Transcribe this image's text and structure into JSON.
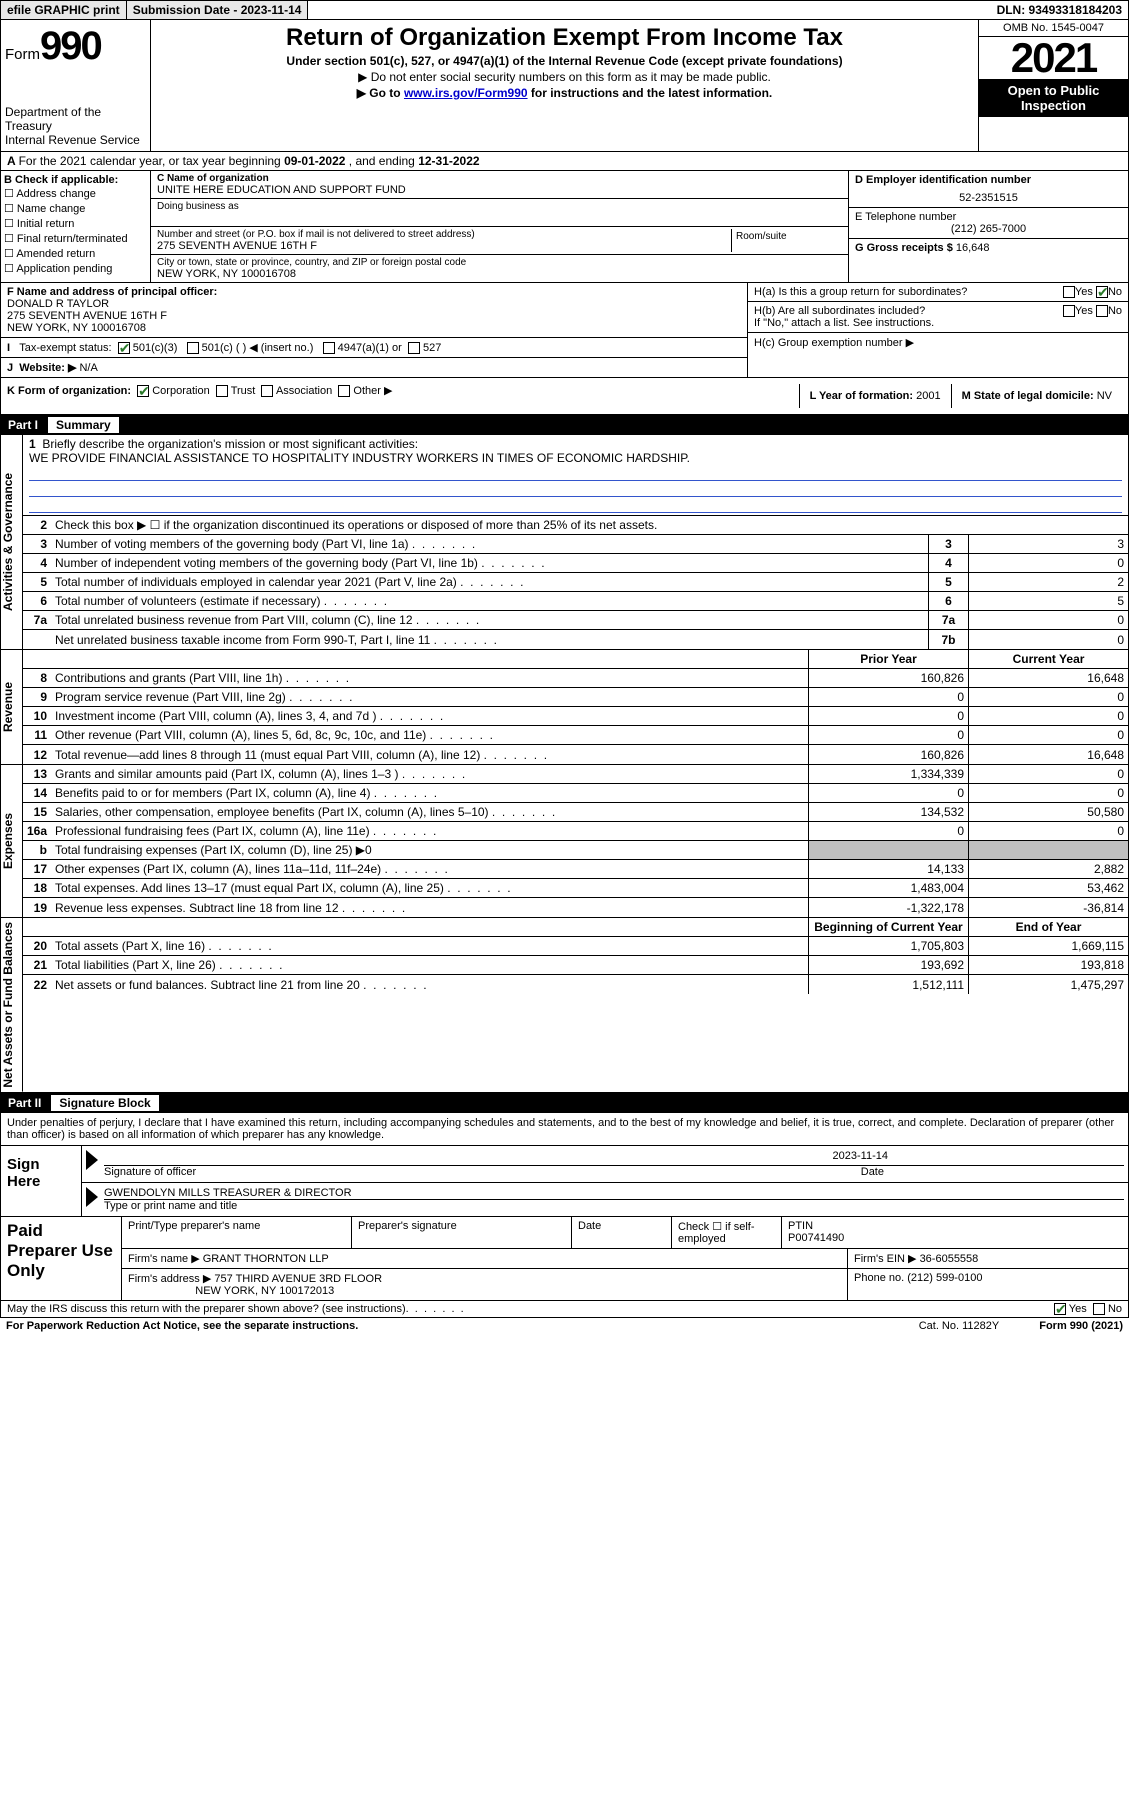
{
  "topbar": {
    "efile": "efile GRAPHIC print",
    "submission_label": "Submission Date - 2023-11-14",
    "dln": "DLN: 93493318184203"
  },
  "header": {
    "form_word": "Form",
    "form_num": "990",
    "dept": "Department of the Treasury",
    "irs": "Internal Revenue Service",
    "title": "Return of Organization Exempt From Income Tax",
    "sub": "Under section 501(c), 527, or 4947(a)(1) of the Internal Revenue Code (except private foundations)",
    "note1": "▶ Do not enter social security numbers on this form as it may be made public.",
    "note2_pre": "▶ Go to ",
    "note2_link": "www.irs.gov/Form990",
    "note2_post": " for instructions and the latest information.",
    "omb": "OMB No. 1545-0047",
    "year": "2021",
    "open": "Open to Public Inspection"
  },
  "A": {
    "text_pre": "For the 2021 calendar year, or tax year beginning ",
    "begin": "09-01-2022",
    "mid": " , and ending ",
    "end": "12-31-2022"
  },
  "B": {
    "label": "B Check if applicable:",
    "opts": [
      "Address change",
      "Name change",
      "Initial return",
      "Final return/terminated",
      "Amended return",
      "Application pending"
    ]
  },
  "C": {
    "name_lbl": "C Name of organization",
    "name": "UNITE HERE EDUCATION AND SUPPORT FUND",
    "dba_lbl": "Doing business as",
    "addr_lbl": "Number and street (or P.O. box if mail is not delivered to street address)",
    "room_lbl": "Room/suite",
    "addr": "275 SEVENTH AVENUE 16TH F",
    "city_lbl": "City or town, state or province, country, and ZIP or foreign postal code",
    "city": "NEW YORK, NY  100016708"
  },
  "D": {
    "lbl": "D Employer identification number",
    "val": "52-2351515"
  },
  "E": {
    "lbl": "E Telephone number",
    "val": "(212) 265-7000"
  },
  "G": {
    "lbl": "G Gross receipts $",
    "val": "16,648"
  },
  "F": {
    "lbl": "F Name and address of principal officer:",
    "name": "DONALD R TAYLOR",
    "addr1": "275 SEVENTH AVENUE 16TH F",
    "addr2": "NEW YORK, NY  100016708"
  },
  "I": {
    "lbl": "Tax-exempt status:",
    "c3": "501(c)(3)",
    "c": "501(c) (    ) ◀ (insert no.)",
    "a": "4947(a)(1) or",
    "s": "527"
  },
  "J": {
    "lbl": "Website: ▶",
    "val": "N/A"
  },
  "H": {
    "a": "H(a)  Is this a group return for subordinates?",
    "b": "H(b)  Are all subordinates included?",
    "bnote": "If \"No,\" attach a list. See instructions.",
    "c": "H(c)  Group exemption number ▶",
    "yes": "Yes",
    "no": "No"
  },
  "K": {
    "lbl": "K Form of organization:",
    "corp": "Corporation",
    "trust": "Trust",
    "assoc": "Association",
    "other": "Other ▶"
  },
  "L": {
    "lbl": "L Year of formation:",
    "val": "2001"
  },
  "M": {
    "lbl": "M State of legal domicile:",
    "val": "NV"
  },
  "part1": {
    "pn": "Part I",
    "pt": "Summary"
  },
  "mission": {
    "num": "1",
    "lbl": "Briefly describe the organization's mission or most significant activities:",
    "text": "WE PROVIDE FINANCIAL ASSISTANCE TO HOSPITALITY INDUSTRY WORKERS IN TIMES OF ECONOMIC HARDSHIP."
  },
  "line2": "Check this box ▶ ☐  if the organization discontinued its operations or disposed of more than 25% of its net assets.",
  "gov": [
    {
      "n": "3",
      "t": "Number of voting members of the governing body (Part VI, line 1a)",
      "b": "3",
      "v": "3"
    },
    {
      "n": "4",
      "t": "Number of independent voting members of the governing body (Part VI, line 1b)",
      "b": "4",
      "v": "0"
    },
    {
      "n": "5",
      "t": "Total number of individuals employed in calendar year 2021 (Part V, line 2a)",
      "b": "5",
      "v": "2"
    },
    {
      "n": "6",
      "t": "Total number of volunteers (estimate if necessary)",
      "b": "6",
      "v": "5"
    },
    {
      "n": "7a",
      "t": "Total unrelated business revenue from Part VIII, column (C), line 12",
      "b": "7a",
      "v": "0"
    },
    {
      "n": "",
      "t": "Net unrelated business taxable income from Form 990-T, Part I, line 11",
      "b": "7b",
      "v": "0"
    }
  ],
  "revhdr": {
    "prior": "Prior Year",
    "curr": "Current Year"
  },
  "rev": [
    {
      "n": "8",
      "t": "Contributions and grants (Part VIII, line 1h)",
      "p": "160,826",
      "c": "16,648"
    },
    {
      "n": "9",
      "t": "Program service revenue (Part VIII, line 2g)",
      "p": "0",
      "c": "0"
    },
    {
      "n": "10",
      "t": "Investment income (Part VIII, column (A), lines 3, 4, and 7d )",
      "p": "0",
      "c": "0"
    },
    {
      "n": "11",
      "t": "Other revenue (Part VIII, column (A), lines 5, 6d, 8c, 9c, 10c, and 11e)",
      "p": "0",
      "c": "0"
    },
    {
      "n": "12",
      "t": "Total revenue—add lines 8 through 11 (must equal Part VIII, column (A), line 12)",
      "p": "160,826",
      "c": "16,648"
    }
  ],
  "exp": [
    {
      "n": "13",
      "t": "Grants and similar amounts paid (Part IX, column (A), lines 1–3 )",
      "p": "1,334,339",
      "c": "0"
    },
    {
      "n": "14",
      "t": "Benefits paid to or for members (Part IX, column (A), line 4)",
      "p": "0",
      "c": "0"
    },
    {
      "n": "15",
      "t": "Salaries, other compensation, employee benefits (Part IX, column (A), lines 5–10)",
      "p": "134,532",
      "c": "50,580"
    },
    {
      "n": "16a",
      "t": "Professional fundraising fees (Part IX, column (A), line 11e)",
      "p": "0",
      "c": "0"
    },
    {
      "n": "b",
      "t": "Total fundraising expenses (Part IX, column (D), line 25) ▶0",
      "p": "",
      "c": "",
      "grey": true
    },
    {
      "n": "17",
      "t": "Other expenses (Part IX, column (A), lines 11a–11d, 11f–24e)",
      "p": "14,133",
      "c": "2,882"
    },
    {
      "n": "18",
      "t": "Total expenses. Add lines 13–17 (must equal Part IX, column (A), line 25)",
      "p": "1,483,004",
      "c": "53,462"
    },
    {
      "n": "19",
      "t": "Revenue less expenses. Subtract line 18 from line 12",
      "p": "-1,322,178",
      "c": "-36,814"
    }
  ],
  "nethdr": {
    "prior": "Beginning of Current Year",
    "curr": "End of Year"
  },
  "net": [
    {
      "n": "20",
      "t": "Total assets (Part X, line 16)",
      "p": "1,705,803",
      "c": "1,669,115"
    },
    {
      "n": "21",
      "t": "Total liabilities (Part X, line 26)",
      "p": "193,692",
      "c": "193,818"
    },
    {
      "n": "22",
      "t": "Net assets or fund balances. Subtract line 21 from line 20",
      "p": "1,512,111",
      "c": "1,475,297"
    }
  ],
  "tabs": {
    "gov": "Activities & Governance",
    "rev": "Revenue",
    "exp": "Expenses",
    "net": "Net Assets or Fund Balances"
  },
  "part2": {
    "pn": "Part II",
    "pt": "Signature Block"
  },
  "sigdecl": "Under penalties of perjury, I declare that I have examined this return, including accompanying schedules and statements, and to the best of my knowledge and belief, it is true, correct, and complete. Declaration of preparer (other than officer) is based on all information of which preparer has any knowledge.",
  "sign": {
    "here": "Sign Here",
    "sig_lbl": "Signature of officer",
    "date_lbl": "Date",
    "date": "2023-11-14",
    "name": "GWENDOLYN MILLS  TREASURER & DIRECTOR",
    "name_lbl": "Type or print name and title"
  },
  "paid": {
    "title": "Paid Preparer Use Only",
    "h1": "Print/Type preparer's name",
    "h2": "Preparer's signature",
    "h3": "Date",
    "h4": "Check ☐ if self-employed",
    "h5_lbl": "PTIN",
    "h5": "P00741490",
    "firm_lbl": "Firm's name   ▶",
    "firm": "GRANT THORNTON LLP",
    "ein_lbl": "Firm's EIN ▶",
    "ein": "36-6055558",
    "addr_lbl": "Firm's address ▶",
    "addr1": "757 THIRD AVENUE 3RD FLOOR",
    "addr2": "NEW YORK, NY  100172013",
    "phone_lbl": "Phone no.",
    "phone": "(212) 599-0100"
  },
  "discuss": "May the IRS discuss this return with the preparer shown above? (see instructions)",
  "footer": {
    "pra": "For Paperwork Reduction Act Notice, see the separate instructions.",
    "cat": "Cat. No. 11282Y",
    "form": "Form 990 (2021)"
  },
  "colors": {
    "link": "#0000cc",
    "check": "#2a7a2a",
    "grey": "#bfbfbf"
  }
}
